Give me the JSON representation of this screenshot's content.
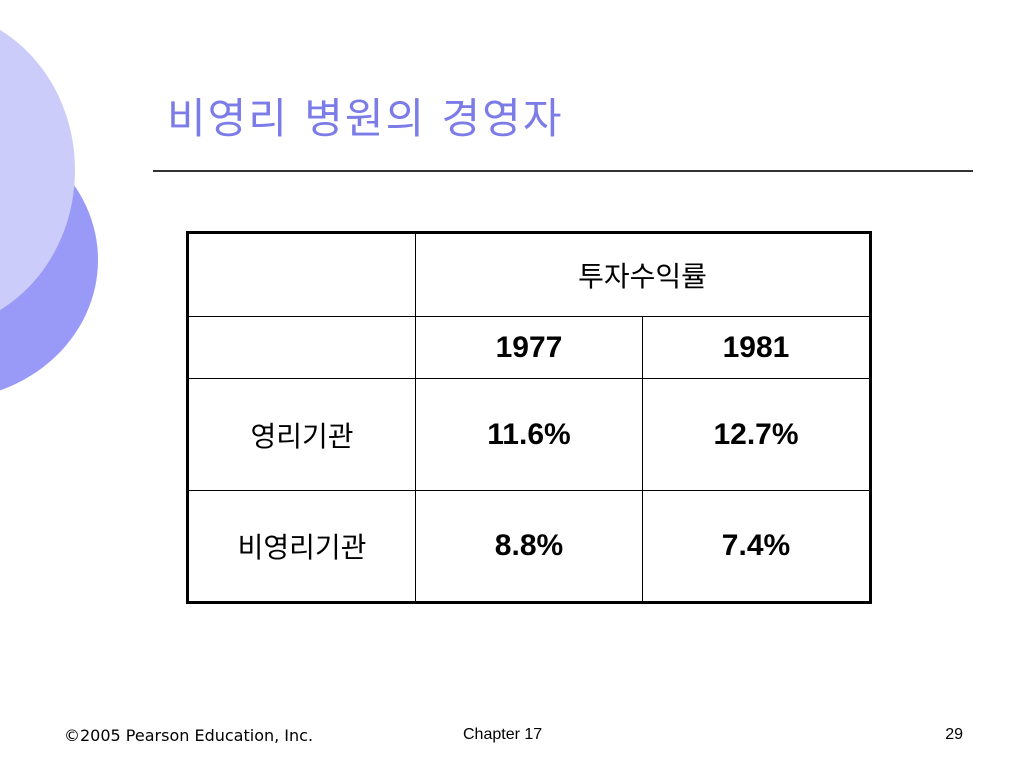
{
  "slide": {
    "title": "비영리 병원의 경영자"
  },
  "table": {
    "header_label": "투자수익률",
    "years": [
      "1977",
      "1981"
    ],
    "rows": [
      {
        "label": "영리기관",
        "values": [
          "11.6%",
          "12.7%"
        ]
      },
      {
        "label": "비영리기관",
        "values": [
          "8.8%",
          "7.4%"
        ]
      }
    ]
  },
  "footer": {
    "copyright": "©2005 Pearson Education, Inc.",
    "chapter": "Chapter 17",
    "page_number": "29"
  },
  "colors": {
    "title": "#7c7ce8",
    "decoration_light": "#ccccfb",
    "decoration_dark": "#9999f7"
  }
}
